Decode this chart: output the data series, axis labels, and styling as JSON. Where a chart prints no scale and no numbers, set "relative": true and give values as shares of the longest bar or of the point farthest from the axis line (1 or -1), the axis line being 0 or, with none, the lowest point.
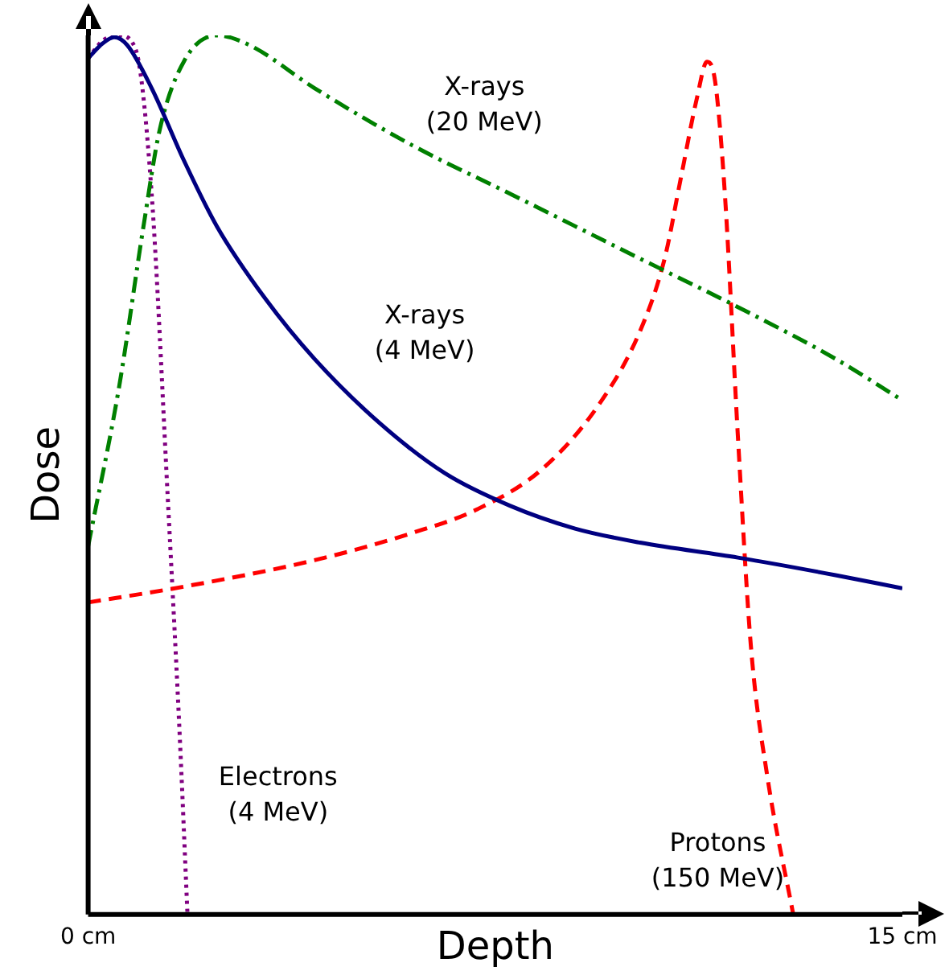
{
  "chart_data": {
    "type": "line",
    "xlabel": "Depth",
    "ylabel": "Dose",
    "relative": true,
    "grid": false,
    "legend": false,
    "marker": "none",
    "tick_labels": "x",
    "xlim": [
      0,
      15
    ],
    "xticks": [
      {
        "value": 0,
        "label": "0 cm"
      },
      {
        "value": 15,
        "label": "15 cm"
      }
    ],
    "series": [
      {
        "name": "X-rays (4 MeV)",
        "color": "#000080",
        "line_style": "solid",
        "x": [
          0,
          0.27,
          0.48,
          0.72,
          1.17,
          1.77,
          2.37,
          3.27,
          4.17,
          5.37,
          6.57,
          7.77,
          8.97,
          10.17,
          11.97,
          13.77,
          15
        ],
        "values": [
          0.974,
          0.991,
          0.998,
          0.989,
          0.94,
          0.857,
          0.783,
          0.7,
          0.632,
          0.559,
          0.502,
          0.465,
          0.439,
          0.423,
          0.406,
          0.386,
          0.371
        ]
      },
      {
        "name": "X-rays (20 MeV)",
        "color": "#008000",
        "line_style": "dashdot",
        "x": [
          0,
          0.57,
          1.02,
          1.32,
          1.77,
          2.37,
          2.97,
          4.17,
          5.97,
          7.77,
          10.17,
          11.97,
          13.77,
          15
        ],
        "values": [
          0.419,
          0.6,
          0.783,
          0.893,
          0.971,
          1.0,
          0.989,
          0.94,
          0.875,
          0.82,
          0.746,
          0.691,
          0.632,
          0.585
        ]
      },
      {
        "name": "Protons (150 MeV)",
        "color": "#ff0000",
        "line_style": "dashed",
        "x": [
          0,
          1.77,
          4.17,
          5.97,
          7.17,
          8.37,
          9.42,
          10.17,
          10.62,
          10.92,
          11.22,
          11.4,
          11.55,
          11.73,
          11.97,
          12.21,
          12.51,
          12.99
        ],
        "values": [
          0.355,
          0.373,
          0.403,
          0.434,
          0.461,
          0.507,
          0.581,
          0.664,
          0.746,
          0.838,
          0.93,
          0.97,
          0.948,
          0.82,
          0.544,
          0.305,
          0.158,
          0
        ]
      },
      {
        "name": "Electrons (4 MeV)",
        "color": "#800080",
        "line_style": "dotted",
        "x": [
          0,
          0.27,
          0.57,
          0.87,
          1.17,
          1.47,
          1.68,
          1.83
        ],
        "values": [
          0.974,
          0.994,
          1.0,
          0.985,
          0.82,
          0.47,
          0.213,
          0
        ]
      }
    ]
  }
}
